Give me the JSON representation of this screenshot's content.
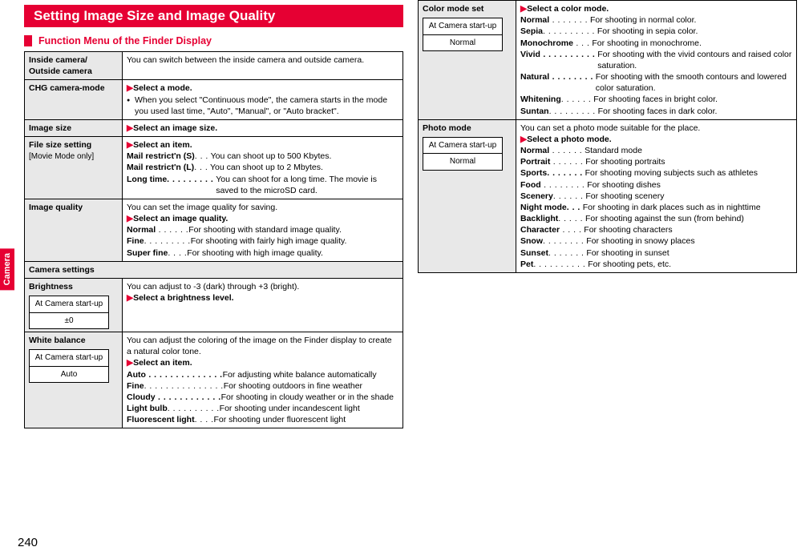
{
  "sideTab": "Camera",
  "pageNumber": "240",
  "title": "Setting Image Size and Image Quality",
  "sectionHead": "Function Menu of the Finder Display",
  "leftRows": {
    "insideOutside": {
      "label1": "Inside camera/",
      "label2": "Outside camera",
      "desc": "You can switch between the inside camera and outside camera."
    },
    "chg": {
      "label": "CHG camera-mode",
      "head": "Select a mode.",
      "bullet": "When you select \"Continuous mode\", the camera starts in the mode you used last time, \"Auto\", \"Manual\", or \"Auto bracket\"."
    },
    "imgSize": {
      "label": "Image size",
      "head": "Select an image size."
    },
    "fileSize": {
      "label": "File size setting",
      "sub": "[Movie Mode only]",
      "head": "Select an item.",
      "r1t": "Mail restrict'n (S)",
      "r1d": ". . .",
      "r1x": "You can shoot up to 500 Kbytes.",
      "r2t": "Mail restrict'n (L)",
      "r2d": ". . .",
      "r2x": "You can shoot up to 2 Mbytes.",
      "r3t": "Long time",
      "r3d": ". . . . . . . . .",
      "r3x": "You can shoot for a long time. The movie is saved to the microSD card."
    },
    "imgQual": {
      "label": "Image quality",
      "intro": "You can set the image quality for saving.",
      "head": "Select an image quality.",
      "r1t": "Normal",
      "r1d": " . . . . . .",
      "r1x": "For shooting with standard image quality.",
      "r2t": "Fine",
      "r2d": ". . . . . . . . .",
      "r2x": "For shooting with fairly high image quality.",
      "r3t": "Super fine",
      "r3d": ". . . .",
      "r3x": "For shooting with high image quality."
    },
    "camSettings": "Camera settings",
    "brightness": {
      "label": "Brightness",
      "m1": "At Camera start-up",
      "m2": "±0",
      "intro": "You can adjust to -3 (dark) through +3 (bright).",
      "head": "Select a brightness level."
    },
    "wb": {
      "label": "White balance",
      "m1": "At Camera start-up",
      "m2": "Auto",
      "intro": "You can adjust the coloring of the image on the Finder display to create a natural color tone.",
      "head": "Select an item.",
      "r1t": "Auto",
      "r1d": " . . . . . . . . . . . . . .",
      "r1x": "For adjusting white balance automatically",
      "r2t": "Fine",
      "r2d": ". . . . . . . . . . . . . . .",
      "r2x": "For shooting outdoors in fine weather",
      "r3t": "Cloudy",
      "r3d": " . . . . . . . . . . . .",
      "r3x": "For shooting in cloudy weather or in the shade",
      "r4t": "Light bulb",
      "r4d": ". . . . . . . . . .",
      "r4x": "For shooting under incandescent light",
      "r5t": "Fluorescent light",
      "r5d": ". . . .",
      "r5x": "For shooting under fluorescent light"
    }
  },
  "rightRows": {
    "colorMode": {
      "label": "Color mode set",
      "m1": "At Camera start-up",
      "m2": "Normal",
      "head": "Select a color mode.",
      "r1t": "Normal",
      "r1d": " . . . . . . .",
      "r1x": "For shooting in normal color.",
      "r2t": "Sepia",
      "r2d": ". . . . . . . . . .",
      "r2x": "For shooting in sepia color.",
      "r3t": "Monochrome",
      "r3d": " . . .",
      "r3x": "For shooting in monochrome.",
      "r4t": "Vivid",
      "r4d": " . . . . . . . . . .",
      "r4x": "For shooting with the vivid contours and raised color saturation.",
      "r5t": "Natural",
      "r5d": " . . . . . . . .",
      "r5x": "For shooting with the smooth contours and lowered color saturation.",
      "r6t": "Whitening",
      "r6d": ". . . . . .",
      "r6x": "For shooting faces in bright color.",
      "r7t": "Suntan",
      "r7d": ". . . . . . . . .",
      "r7x": "For shooting faces in dark color."
    },
    "photoMode": {
      "label": "Photo mode",
      "m1": "At Camera start-up",
      "m2": "Normal",
      "intro": "You can set a photo mode suitable for the place.",
      "head": "Select a photo mode.",
      "r1t": "Normal",
      "r1d": " . . . . . .",
      "r1x": "Standard mode",
      "r2t": "Portrait",
      "r2d": " . . . . . .",
      "r2x": "For shooting portraits",
      "r3t": "Sports",
      "r3d": ". . . . . . .",
      "r3x": "For shooting moving subjects such as athletes",
      "r4t": "Food",
      "r4d": " . . . . . . . .",
      "r4x": "For shooting dishes",
      "r5t": "Scenery",
      "r5d": ". . . . . .",
      "r5x": "For shooting scenery",
      "r6t": "Night mode",
      "r6d": ". . .",
      "r6x": "For shooting in dark places such as in nighttime",
      "r7t": "Backlight",
      "r7d": ". . . . .",
      "r7x": "For shooting against the sun (from behind)",
      "r8t": "Character",
      "r8d": " . . . .",
      "r8x": "For shooting characters",
      "r9t": "Snow",
      "r9d": ". . . . . . . .",
      "r9x": "For shooting in snowy places",
      "r10t": "Sunset",
      "r10d": ". . . . . . .",
      "r10x": "For shooting in sunset",
      "r11t": "Pet",
      "r11d": ". . . . . . . . . .",
      "r11x": "For shooting pets, etc."
    }
  }
}
